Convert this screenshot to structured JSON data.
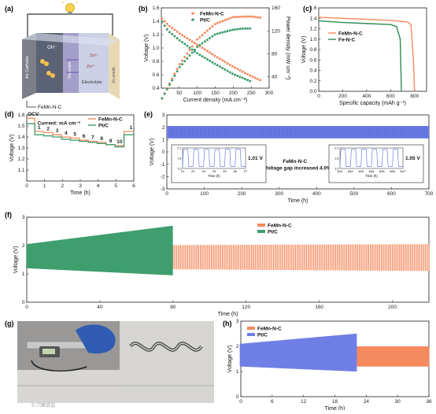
{
  "panels": {
    "a": "(a)",
    "b": "(b)",
    "c": "(c)",
    "d": "(d)",
    "e": "(e)",
    "f": "(f)",
    "g": "(g)",
    "h": "(h)"
  },
  "colors": {
    "orange": "#f58a5e",
    "green": "#3f9e6e",
    "blue": "#6f7fe6",
    "battery_green": "#2e8b57"
  },
  "schematic": {
    "labels": [
      "Air Cathode",
      "OH⁻",
      "Zn²⁺",
      "Zn²⁺",
      "Separator",
      "Electrolyte",
      "Zn anode",
      "FeMn-N-C"
    ],
    "icons": [
      "lightbulb-icon",
      "oxygen-molecule-icon"
    ]
  },
  "photo": {
    "caption_right": "",
    "watermark": "© 穴图说话"
  },
  "chart_data": [
    {
      "id": "b",
      "type": "line",
      "xlabel": "Current density (mA cm⁻²)",
      "ylabel": "Voltage (V)",
      "y2label": "Power density (mW cm⁻²)",
      "xlim": [
        0,
        300
      ],
      "ylim": [
        0.4,
        1.6
      ],
      "y2lim": [
        20,
        160
      ],
      "xticks": [
        50,
        100,
        150,
        200,
        250,
        300
      ],
      "yticks": [
        0.4,
        0.6,
        0.8,
        1.0,
        1.2,
        1.4,
        1.6
      ],
      "y2ticks": [
        40,
        80,
        120,
        160
      ],
      "series": [
        {
          "name": "FeMn-N-C",
          "color": "#f58a5e",
          "voltage": {
            "x": [
              0,
              20,
              50,
              100,
              150,
              200,
              250,
              275
            ],
            "y": [
              1.45,
              1.34,
              1.22,
              1.05,
              0.88,
              0.72,
              0.58,
              0.52
            ]
          },
          "power": {
            "x": [
              0,
              50,
              100,
              150,
              200,
              250,
              275
            ],
            "y": [
              0,
              61,
              105,
              132,
              144,
              145,
              143
            ]
          }
        },
        {
          "name": "Pt/C",
          "color": "#3f9e6e",
          "voltage": {
            "x": [
              0,
              20,
              50,
              100,
              150,
              200,
              250
            ],
            "y": [
              1.4,
              1.25,
              1.12,
              0.92,
              0.76,
              0.61,
              0.5
            ]
          },
          "power": {
            "x": [
              0,
              50,
              100,
              150,
              200,
              230,
              250
            ],
            "y": [
              0,
              56,
              92,
              114,
              122,
              124,
              124
            ]
          }
        }
      ]
    },
    {
      "id": "c",
      "type": "line",
      "xlabel": "Specific capacity (mAh g⁻¹)",
      "ylabel": "Voltage (V)",
      "xlim": [
        0,
        900
      ],
      "ylim": [
        0,
        1.6
      ],
      "xticks": [
        0,
        200,
        400,
        600,
        800
      ],
      "yticks": [
        0.0,
        0.2,
        0.4,
        0.6,
        0.8,
        1.0,
        1.2,
        1.4,
        1.6
      ],
      "series": [
        {
          "name": "FeMn-N-C",
          "color": "#f58a5e",
          "x": [
            0,
            200,
            400,
            600,
            740,
            770,
            790,
            800
          ],
          "y": [
            1.42,
            1.4,
            1.38,
            1.36,
            1.33,
            1.28,
            0.6,
            0.0
          ]
        },
        {
          "name": "Fe-N-C",
          "color": "#2e8b57",
          "x": [
            0,
            200,
            400,
            600,
            650,
            680,
            690
          ],
          "y": [
            1.35,
            1.32,
            1.3,
            1.28,
            1.24,
            1.0,
            0.0
          ]
        }
      ]
    },
    {
      "id": "d",
      "type": "line",
      "xlabel": "Time (h)",
      "ylabel": "Voltage (V)",
      "xlim": [
        0,
        6
      ],
      "ylim": [
        1.0,
        1.6
      ],
      "xticks": [
        0,
        1,
        2,
        3,
        4,
        5,
        6
      ],
      "yticks": [
        1.1,
        1.2,
        1.3,
        1.4,
        1.5,
        1.6
      ],
      "annotations": [
        "OCV",
        "Current: mA cm⁻²"
      ],
      "step_labels": [
        "1",
        "2",
        "3",
        "4",
        "5",
        "6",
        "7",
        "8",
        "9",
        "10",
        "1"
      ],
      "series": [
        {
          "name": "FeMn-N-C",
          "color": "#f58a5e",
          "ocv": 1.57,
          "plateaus": [
            1.45,
            1.44,
            1.42,
            1.4,
            1.39,
            1.37,
            1.36,
            1.35,
            1.33,
            1.32
          ],
          "recover": 1.45
        },
        {
          "name": "Pt/C",
          "color": "#3f9e6e",
          "ocv": 1.52,
          "plateaus": [
            1.42,
            1.41,
            1.4,
            1.38,
            1.37,
            1.36,
            1.35,
            1.34,
            1.33,
            1.31
          ],
          "recover": 1.42
        }
      ]
    },
    {
      "id": "e",
      "type": "area",
      "xlabel": "Time (h)",
      "ylabel": "Voltage (V)",
      "xlim": [
        0,
        700
      ],
      "ylim": [
        -3,
        3
      ],
      "xticks": [
        0,
        100,
        200,
        300,
        400,
        500,
        600,
        700
      ],
      "yticks": [
        -3,
        -2,
        -1,
        0,
        1,
        2,
        3
      ],
      "series": [
        {
          "name": "FeMn-N-C",
          "color": "#6f7fe6",
          "charge": 2.1,
          "discharge": 1.1
        }
      ],
      "annotations": [
        "FeMn-N-C",
        "Voltage gap increased 4.0%"
      ],
      "insets": [
        {
          "xticks": [
            21,
            22,
            23,
            24,
            25,
            26,
            27
          ],
          "yticks": [
            1.0,
            1.2,
            1.4,
            1.6,
            1.8,
            2.0,
            2.2
          ],
          "gap": "1.01 V",
          "xlabel": "Time (h)",
          "ylabel": "Voltage (V)"
        },
        {
          "xticks": [
            641,
            642,
            643,
            644,
            645,
            646,
            647
          ],
          "yticks": [
            1.0,
            1.2,
            1.4,
            1.6,
            1.8,
            2.0,
            2.2
          ],
          "gap": "1.05 V",
          "xlabel": "Time (h)",
          "ylabel": "Voltage (V)"
        }
      ]
    },
    {
      "id": "f",
      "type": "area",
      "xlabel": "Time (h)",
      "ylabel": "Voltage (V)",
      "xlim": [
        0,
        220
      ],
      "ylim": [
        0,
        3
      ],
      "xticks": [
        0,
        40,
        80,
        120,
        160,
        200
      ],
      "yticks": [
        0,
        1,
        2,
        3
      ],
      "series": [
        {
          "name": "FeMn-N-C",
          "color": "#f58a5e",
          "x": [
            0,
            220
          ],
          "charge": [
            2.0,
            2.05
          ],
          "discharge": [
            1.2,
            1.1
          ]
        },
        {
          "name": "Pt/C",
          "color": "#3f9e6e",
          "x": [
            0,
            80
          ],
          "charge": [
            2.05,
            2.7
          ],
          "discharge": [
            1.2,
            0.95
          ]
        }
      ]
    },
    {
      "id": "h",
      "type": "area",
      "xlabel": "Time (h)",
      "ylabel": "Voltage (V)",
      "xlim": [
        0,
        36
      ],
      "ylim": [
        0,
        3
      ],
      "xticks": [
        0,
        6,
        12,
        18,
        24,
        30,
        36
      ],
      "yticks": [
        0,
        1,
        2,
        3
      ],
      "series": [
        {
          "name": "FeMn-N-C",
          "color": "#f58a5e",
          "x": [
            22,
            36
          ],
          "charge": [
            2.0,
            2.0
          ],
          "discharge": [
            1.2,
            1.2
          ]
        },
        {
          "name": "Pt/C",
          "color": "#6f7fe6",
          "x": [
            0,
            22
          ],
          "charge": [
            2.1,
            2.5
          ],
          "discharge": [
            1.2,
            1.0
          ]
        }
      ]
    }
  ]
}
